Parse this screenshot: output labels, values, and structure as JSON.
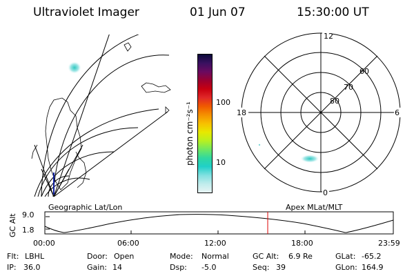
{
  "header": {
    "title": "Ultraviolet Imager",
    "date": "01 Jun 07",
    "time": "15:30:00 UT"
  },
  "colorbar": {
    "axis_label": "photon cm⁻²s⁻¹",
    "ticks": [
      "100",
      "10"
    ],
    "colors": [
      "#0b0b3a",
      "#3a1060",
      "#6a0a60",
      "#9a0030",
      "#c80010",
      "#e02828",
      "#f05a00",
      "#f59000",
      "#f7c000",
      "#e8e800",
      "#b8f020",
      "#70e860",
      "#30d8a0",
      "#20d0c8",
      "#80e0e0",
      "#c0ecec",
      "#e8f4f4"
    ]
  },
  "left_map": {
    "label": "Geographic Lat/Lon"
  },
  "right_map": {
    "label": "Apex MLat/MLT",
    "mlt_labels": {
      "top": "12",
      "bottom": "0",
      "left": "18",
      "right": "6"
    },
    "lat_labels": [
      "80",
      "70",
      "60"
    ]
  },
  "altitude_plot": {
    "ylabel": "GC Alt",
    "yticks": [
      "9.0",
      "1.8"
    ],
    "xticks": [
      "00:00",
      "06:00",
      "12:00",
      "18:00",
      "23:59"
    ],
    "marker_color": "#dd0000"
  },
  "info": {
    "row1": [
      {
        "label": "Flt:",
        "value": "LBHL"
      },
      {
        "label": "Door:",
        "value": "Open"
      },
      {
        "label": "Mode:",
        "value": "Normal"
      },
      {
        "label": "GC Alt:",
        "value": "6.9 Re"
      },
      {
        "label": "GLat:",
        "value": "-65.2"
      }
    ],
    "row2": [
      {
        "label": "IP:",
        "value": "36.0"
      },
      {
        "label": "Gain:",
        "value": "14"
      },
      {
        "label": "Dsp:",
        "value": "-5.0"
      },
      {
        "label": "Seq:",
        "value": "39"
      },
      {
        "label": "GLon:",
        "value": "164.9"
      }
    ]
  }
}
